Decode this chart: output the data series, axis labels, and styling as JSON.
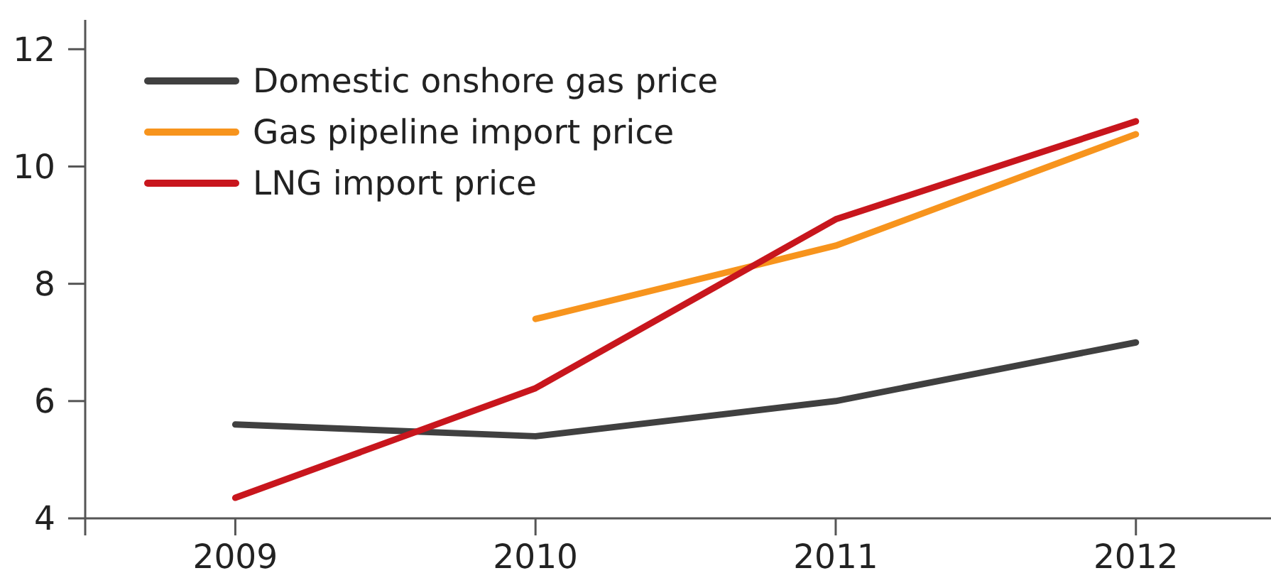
{
  "chart_data": {
    "type": "line",
    "x": [
      2009,
      2010,
      2011,
      2012
    ],
    "series": [
      {
        "name": "Domestic onshore gas price",
        "color": "#404040",
        "values": [
          5.6,
          5.4,
          6.0,
          7.0
        ]
      },
      {
        "name": "Gas pipeline import price",
        "color": "#f7941d",
        "values": [
          null,
          7.4,
          8.65,
          10.55
        ]
      },
      {
        "name": "LNG import price",
        "color": "#c8161d",
        "values": [
          4.35,
          6.22,
          9.1,
          10.77
        ]
      }
    ],
    "xlim": [
      2008.5,
      2012.45
    ],
    "xticks": [
      2009,
      2010,
      2011,
      2012
    ],
    "ylim": [
      4,
      12.5
    ],
    "yticks": [
      4,
      6,
      8,
      10,
      12
    ],
    "grid": false,
    "legend": "top left",
    "marker": "none",
    "line_style": "solid"
  }
}
